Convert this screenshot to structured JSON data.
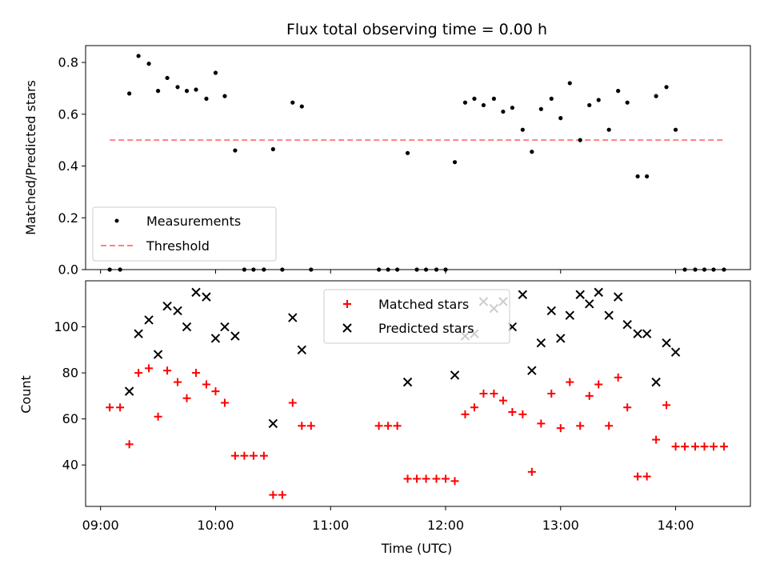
{
  "chart_data": [
    {
      "type": "scatter",
      "title": "Flux total observing time = 0.00 h",
      "xlabel": "",
      "ylabel": "Matched/Predicted stars",
      "xlim": [
        8.87,
        14.65
      ],
      "ylim": [
        0,
        0.865
      ],
      "yticks": [
        0.0,
        0.2,
        0.4,
        0.6,
        0.8
      ],
      "yticklabels": [
        "0.0",
        "0.2",
        "0.4",
        "0.6",
        "0.8"
      ],
      "legend_position": "lower-left",
      "series": [
        {
          "name": "Measurements",
          "marker": "dot",
          "color": "#000000",
          "x": [
            9.08,
            9.17,
            9.25,
            9.33,
            9.42,
            9.5,
            9.58,
            9.67,
            9.75,
            9.83,
            9.92,
            10.0,
            10.08,
            10.17,
            10.25,
            10.33,
            10.42,
            10.5,
            10.58,
            10.67,
            10.75,
            10.83,
            11.42,
            11.5,
            11.58,
            11.67,
            11.75,
            11.83,
            11.92,
            12.0,
            12.08,
            12.17,
            12.25,
            12.33,
            12.42,
            12.5,
            12.58,
            12.67,
            12.75,
            12.83,
            12.92,
            13.0,
            13.08,
            13.17,
            13.25,
            13.33,
            13.42,
            13.5,
            13.58,
            13.67,
            13.75,
            13.83,
            13.92,
            14.0,
            14.08,
            14.17,
            14.25,
            14.33,
            14.42
          ],
          "y": [
            0.0,
            0.0,
            0.68,
            0.825,
            0.795,
            0.69,
            0.74,
            0.705,
            0.69,
            0.695,
            0.66,
            0.76,
            0.67,
            0.46,
            0.0,
            0.0,
            0.0,
            0.465,
            0.0,
            0.645,
            0.63,
            0.0,
            0.0,
            0.0,
            0.0,
            0.45,
            0.0,
            0.0,
            0.0,
            0.0,
            0.415,
            0.645,
            0.66,
            0.635,
            0.66,
            0.61,
            0.625,
            0.54,
            0.455,
            0.62,
            0.66,
            0.585,
            0.72,
            0.5,
            0.635,
            0.655,
            0.54,
            0.69,
            0.645,
            0.36,
            0.36,
            0.67,
            0.705,
            0.54,
            0.0,
            0.0,
            0.0,
            0.0,
            0.0
          ]
        },
        {
          "name": "Threshold",
          "style": "dashed",
          "color": "#ff8080",
          "x": [
            9.08,
            14.42
          ],
          "y": [
            0.5,
            0.5
          ]
        }
      ]
    },
    {
      "type": "scatter",
      "title": "",
      "xlabel": "Time (UTC)",
      "ylabel": "Count",
      "xlim": [
        8.87,
        14.65
      ],
      "ylim": [
        22,
        120
      ],
      "yticks": [
        40,
        60,
        80,
        100
      ],
      "yticklabels": [
        "40",
        "60",
        "80",
        "100"
      ],
      "xticks": [
        9,
        10,
        11,
        12,
        13,
        14
      ],
      "xticklabels": [
        "09:00",
        "10:00",
        "11:00",
        "12:00",
        "13:00",
        "14:00"
      ],
      "legend_position": "top-center",
      "series": [
        {
          "name": "Matched stars",
          "marker": "plus",
          "color": "#ff0000",
          "x": [
            9.08,
            9.17,
            9.25,
            9.33,
            9.42,
            9.5,
            9.58,
            9.67,
            9.75,
            9.83,
            9.92,
            10.0,
            10.08,
            10.17,
            10.25,
            10.33,
            10.42,
            10.5,
            10.58,
            10.67,
            10.75,
            10.83,
            11.42,
            11.5,
            11.58,
            11.67,
            11.75,
            11.83,
            11.92,
            12.0,
            12.08,
            12.17,
            12.25,
            12.33,
            12.42,
            12.5,
            12.58,
            12.67,
            12.75,
            12.83,
            12.92,
            13.0,
            13.08,
            13.17,
            13.25,
            13.33,
            13.42,
            13.5,
            13.58,
            13.67,
            13.75,
            13.83,
            13.92,
            14.0,
            14.08,
            14.17,
            14.25,
            14.33,
            14.42
          ],
          "y": [
            65,
            65,
            49,
            80,
            82,
            61,
            81,
            76,
            69,
            80,
            75,
            72,
            67,
            44,
            44,
            44,
            44,
            27,
            27,
            67,
            57,
            57,
            57,
            57,
            57,
            34,
            34,
            34,
            34,
            34,
            33,
            62,
            65,
            71,
            71,
            68,
            63,
            62,
            37,
            58,
            71,
            56,
            76,
            57,
            70,
            75,
            57,
            78,
            65,
            35,
            35,
            51,
            66,
            48,
            48,
            48,
            48,
            48,
            48
          ]
        },
        {
          "name": "Predicted stars",
          "marker": "x",
          "color": "#000000",
          "x": [
            9.25,
            9.33,
            9.42,
            9.5,
            9.58,
            9.67,
            9.75,
            9.83,
            9.92,
            10.0,
            10.08,
            10.17,
            10.5,
            10.67,
            10.75,
            11.67,
            12.08,
            12.17,
            12.25,
            12.33,
            12.42,
            12.5,
            12.58,
            12.67,
            12.75,
            12.83,
            12.92,
            13.0,
            13.08,
            13.17,
            13.25,
            13.33,
            13.42,
            13.5,
            13.58,
            13.67,
            13.75,
            13.83,
            13.92,
            14.0
          ],
          "y": [
            72,
            97,
            103,
            88,
            109,
            107,
            100,
            115,
            113,
            95,
            100,
            96,
            58,
            104,
            90,
            76,
            79,
            96,
            97,
            111,
            108,
            111,
            100,
            114,
            81,
            93,
            107,
            95,
            105,
            114,
            110,
            115,
            105,
            113,
            101,
            97,
            97,
            76,
            93,
            89
          ]
        }
      ]
    }
  ]
}
